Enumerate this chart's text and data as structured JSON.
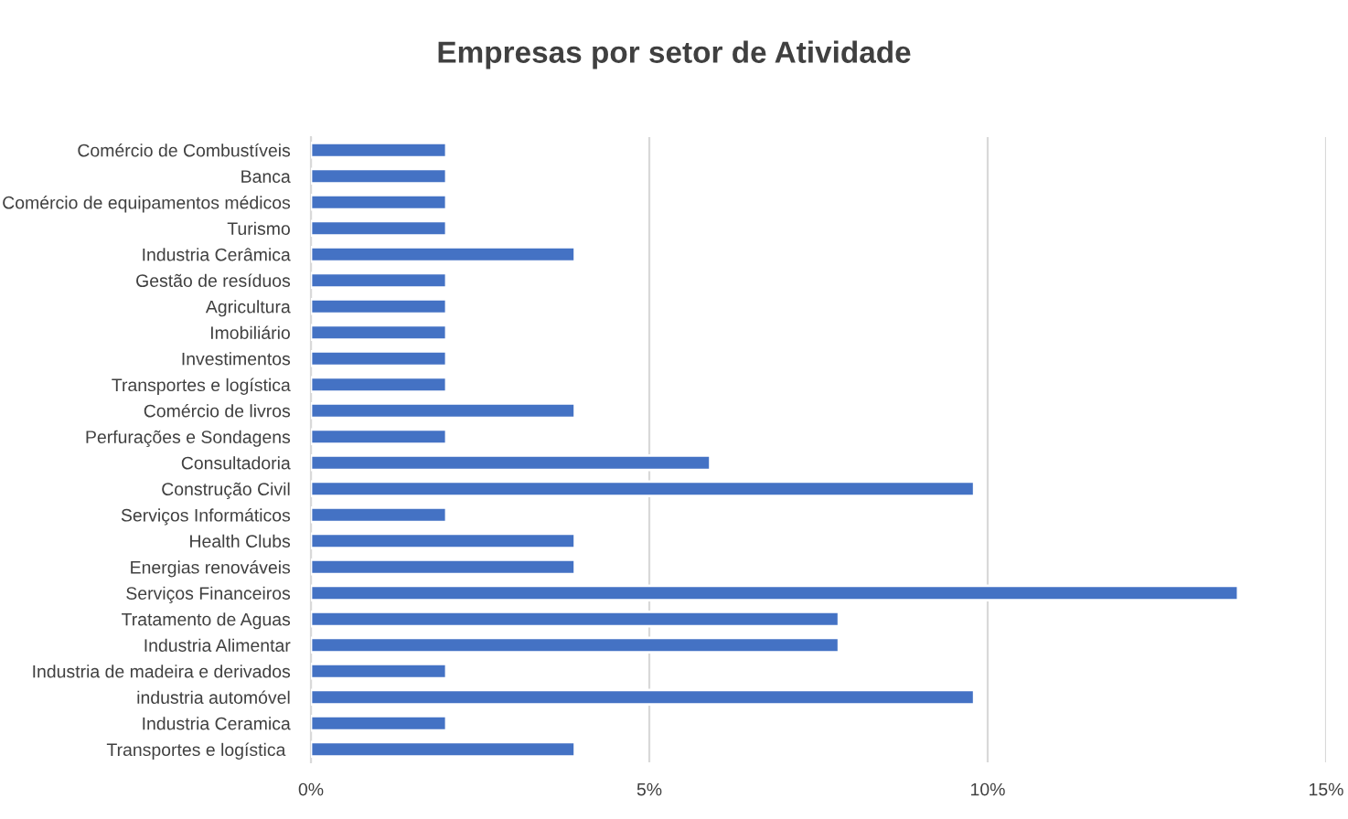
{
  "chart_data": {
    "type": "bar",
    "orientation": "horizontal",
    "title": "Empresas por setor de Atividade",
    "categories": [
      "Comércio de Combustíveis",
      "Banca",
      "Comércio de equipamentos médicos",
      "Turismo",
      "Industria Cerâmica",
      "Gestão de resíduos",
      "Agricultura",
      "Imobiliário",
      "Investimentos",
      "Transportes e logística",
      "Comércio de livros",
      "Perfurações e Sondagens",
      "Consultadoria",
      "Construção Civil",
      "Serviços Informáticos",
      "Health Clubs",
      "Energias renováveis",
      "Serviços Financeiros",
      "Tratamento de Aguas",
      "Industria Alimentar",
      "Industria de madeira e derivados",
      "industria automóvel",
      "Industria Ceramica",
      "Transportes e logística "
    ],
    "values": [
      2.0,
      2.0,
      2.0,
      2.0,
      3.9,
      2.0,
      2.0,
      2.0,
      2.0,
      2.0,
      3.9,
      2.0,
      5.9,
      9.8,
      2.0,
      3.9,
      3.9,
      13.7,
      7.8,
      7.8,
      2.0,
      9.8,
      2.0,
      3.9
    ],
    "color": "#4472c4",
    "xlim": [
      0,
      15
    ],
    "xticks": [
      {
        "value": 0,
        "label": "0%"
      },
      {
        "value": 5,
        "label": "5%"
      },
      {
        "value": 10,
        "label": "10%"
      },
      {
        "value": 15,
        "label": "15%"
      }
    ],
    "grid": "x"
  }
}
